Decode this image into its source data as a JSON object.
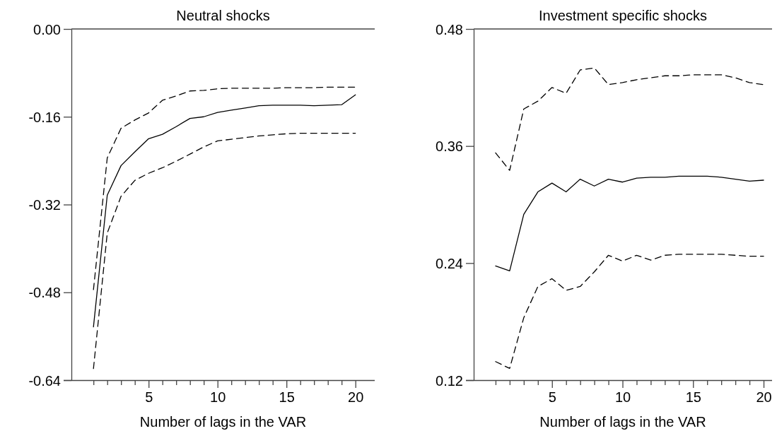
{
  "chart_data": [
    {
      "type": "line",
      "title": "Neutral shocks",
      "xlabel": "Number of lags in the VAR",
      "x": [
        1,
        2,
        3,
        4,
        5,
        6,
        7,
        8,
        9,
        10,
        11,
        12,
        13,
        14,
        15,
        16,
        17,
        18,
        19,
        20
      ],
      "xlim": [
        -0.6,
        21.4
      ],
      "xticks": [
        {
          "value": 1,
          "label": null
        },
        {
          "value": 2,
          "label": null
        },
        {
          "value": 3,
          "label": null
        },
        {
          "value": 4,
          "label": null
        },
        5,
        {
          "value": 6,
          "label": null
        },
        {
          "value": 7,
          "label": null
        },
        {
          "value": 8,
          "label": null
        },
        {
          "value": 9,
          "label": null
        },
        10,
        {
          "value": 11,
          "label": null
        },
        {
          "value": 12,
          "label": null
        },
        {
          "value": 13,
          "label": null
        },
        {
          "value": 14,
          "label": null
        },
        15,
        {
          "value": 16,
          "label": null
        },
        {
          "value": 17,
          "label": null
        },
        {
          "value": 18,
          "label": null
        },
        {
          "value": 19,
          "label": null
        },
        20
      ],
      "ylim": [
        -0.64,
        0
      ],
      "yticks": [
        {
          "value": -0.64,
          "label": "-0.64"
        },
        {
          "value": -0.48,
          "label": "-0.48"
        },
        {
          "value": -0.32,
          "label": "-0.32"
        },
        {
          "value": -0.16,
          "label": "-0.16"
        },
        {
          "value": 0,
          "label": "0.00"
        }
      ],
      "grid": false,
      "series": [
        {
          "color": "#000000",
          "line_style": "solid",
          "values": [
            -0.543,
            -0.303,
            -0.249,
            -0.224,
            -0.2,
            -0.192,
            -0.178,
            -0.163,
            -0.16,
            -0.152,
            -0.148,
            -0.144,
            -0.14,
            -0.139,
            -0.139,
            -0.139,
            -0.14,
            -0.139,
            -0.138,
            -0.12
          ]
        },
        {
          "color": "#000000",
          "line_style": "dashed",
          "values": [
            -0.475,
            -0.235,
            -0.181,
            -0.166,
            -0.153,
            -0.13,
            -0.122,
            -0.113,
            -0.112,
            -0.109,
            -0.108,
            -0.108,
            -0.108,
            -0.108,
            -0.107,
            -0.107,
            -0.107,
            -0.106,
            -0.106,
            -0.106
          ]
        },
        {
          "color": "#000000",
          "line_style": "dashed",
          "values": [
            -0.619,
            -0.372,
            -0.305,
            -0.276,
            -0.263,
            -0.253,
            -0.241,
            -0.228,
            -0.215,
            -0.204,
            -0.201,
            -0.198,
            -0.195,
            -0.193,
            -0.191,
            -0.19,
            -0.19,
            -0.19,
            -0.19,
            -0.19
          ]
        }
      ]
    },
    {
      "type": "line",
      "title": "Investment specific shocks",
      "xlabel": "Number of lags in the VAR",
      "x": [
        1,
        2,
        3,
        4,
        5,
        6,
        7,
        8,
        9,
        10,
        11,
        12,
        13,
        14,
        15,
        16,
        17,
        18,
        19,
        20
      ],
      "xlim": [
        -0.55,
        20.6
      ],
      "xticks": [
        {
          "value": 1,
          "label": null
        },
        {
          "value": 2,
          "label": null
        },
        {
          "value": 3,
          "label": null
        },
        {
          "value": 4,
          "label": null
        },
        5,
        {
          "value": 6,
          "label": null
        },
        {
          "value": 7,
          "label": null
        },
        {
          "value": 8,
          "label": null
        },
        {
          "value": 9,
          "label": null
        },
        10,
        {
          "value": 11,
          "label": null
        },
        {
          "value": 12,
          "label": null
        },
        {
          "value": 13,
          "label": null
        },
        {
          "value": 14,
          "label": null
        },
        15,
        {
          "value": 16,
          "label": null
        },
        {
          "value": 17,
          "label": null
        },
        {
          "value": 18,
          "label": null
        },
        {
          "value": 19,
          "label": null
        },
        20
      ],
      "ylim": [
        0.12,
        0.48
      ],
      "yticks": [
        0.12,
        0.24,
        0.36,
        0.48
      ],
      "grid": false,
      "series": [
        {
          "color": "#000000",
          "line_style": "solid",
          "values": [
            0.237,
            0.232,
            0.29,
            0.313,
            0.322,
            0.313,
            0.326,
            0.319,
            0.326,
            0.323,
            0.327,
            0.328,
            0.328,
            0.329,
            0.329,
            0.329,
            0.328,
            0.326,
            0.324,
            0.325
          ]
        },
        {
          "color": "#000000",
          "line_style": "dashed",
          "values": [
            0.353,
            0.335,
            0.398,
            0.406,
            0.42,
            0.414,
            0.438,
            0.44,
            0.423,
            0.425,
            0.428,
            0.43,
            0.432,
            0.432,
            0.433,
            0.433,
            0.433,
            0.43,
            0.425,
            0.423
          ]
        },
        {
          "color": "#000000",
          "line_style": "dashed",
          "values": [
            0.139,
            0.132,
            0.184,
            0.216,
            0.224,
            0.212,
            0.216,
            0.231,
            0.248,
            0.242,
            0.248,
            0.243,
            0.248,
            0.249,
            0.249,
            0.249,
            0.249,
            0.248,
            0.247,
            0.247
          ]
        }
      ]
    }
  ]
}
